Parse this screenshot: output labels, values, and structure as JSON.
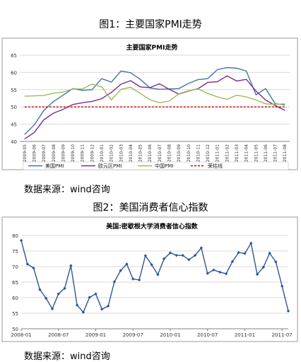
{
  "figure1": {
    "caption": "图1：主要国家PMI走势",
    "source": "数据来源：wind咨询",
    "chart_data": {
      "type": "line",
      "title": "主要国家PMI走势",
      "ylim": [
        40,
        65
      ],
      "yticks": [
        40,
        45,
        50,
        55,
        60,
        65
      ],
      "categories": [
        "2009-05",
        "2009-06",
        "2009-07",
        "2009-08",
        "2009-09",
        "2009-10",
        "2009-11",
        "2009-12",
        "2010-01",
        "2010-02",
        "2010-03",
        "2010-04",
        "2010-05",
        "2010-06",
        "2010-07",
        "2010-08",
        "2010-09",
        "2010-10",
        "2010-11",
        "2010-12",
        "2011-01",
        "2011-02",
        "2011-03",
        "2011-04",
        "2011-05",
        "2011-06",
        "2011-07",
        "2011-08"
      ],
      "grid": true,
      "legend_position": "bottom",
      "series": [
        {
          "name": "美国PMI",
          "color": "#4472a8",
          "values": [
            42.0,
            44.8,
            49.0,
            51.6,
            53.4,
            55.3,
            54.8,
            55.0,
            58.2,
            57.2,
            60.4,
            59.9,
            58.0,
            55.5,
            55.1,
            55.2,
            55.3,
            56.8,
            57.9,
            58.2,
            60.8,
            61.4,
            61.2,
            60.4,
            53.5,
            55.3,
            50.9,
            50.6
          ]
        },
        {
          "name": "欧元区PMI",
          "color": "#7a2d8c",
          "values": [
            40.7,
            42.6,
            46.3,
            48.2,
            49.3,
            50.7,
            51.2,
            51.6,
            52.4,
            54.2,
            56.6,
            57.6,
            55.8,
            55.6,
            56.7,
            55.1,
            53.7,
            54.6,
            55.3,
            57.1,
            57.3,
            59.0,
            57.5,
            58.0,
            54.6,
            52.0,
            50.4,
            49.0
          ]
        },
        {
          "name": "中国PMI",
          "color": "#9bbb59",
          "values": [
            53.1,
            53.2,
            53.3,
            54.0,
            54.3,
            55.2,
            55.2,
            56.6,
            55.8,
            52.0,
            55.1,
            55.7,
            53.9,
            52.1,
            51.2,
            51.7,
            53.8,
            54.7,
            55.2,
            53.9,
            52.9,
            52.2,
            53.4,
            52.9,
            52.0,
            50.9,
            50.7,
            50.9
          ]
        },
        {
          "name": "荣枯线",
          "color": "#c00000",
          "dashed": true,
          "values": [
            50,
            50,
            50,
            50,
            50,
            50,
            50,
            50,
            50,
            50,
            50,
            50,
            50,
            50,
            50,
            50,
            50,
            50,
            50,
            50,
            50,
            50,
            50,
            50,
            50,
            50,
            50,
            50
          ]
        }
      ]
    }
  },
  "figure2": {
    "caption": "图2：美国消费者信心指数",
    "source": "数据来源：wind咨询",
    "chart_data": {
      "type": "line",
      "title": "美国:密歇根大学消费者信心指数",
      "ylim": [
        50,
        80
      ],
      "yticks": [
        50,
        55,
        60,
        65,
        70,
        75,
        80
      ],
      "xticks": [
        "2008-01",
        "2008-07",
        "2009-01",
        "2009-07",
        "2010-01",
        "2010-07",
        "2011-01",
        "2011-07"
      ],
      "grid": true,
      "series": [
        {
          "name": "",
          "color": "#2f5597",
          "marker": "diamond",
          "x": [
            "2008-01",
            "2008-02",
            "2008-03",
            "2008-04",
            "2008-05",
            "2008-06",
            "2008-07",
            "2008-08",
            "2008-09",
            "2008-10",
            "2008-11",
            "2008-12",
            "2009-01",
            "2009-02",
            "2009-03",
            "2009-04",
            "2009-05",
            "2009-06",
            "2009-07",
            "2009-08",
            "2009-09",
            "2009-10",
            "2009-11",
            "2009-12",
            "2010-01",
            "2010-02",
            "2010-03",
            "2010-04",
            "2010-05",
            "2010-06",
            "2010-07",
            "2010-08",
            "2010-09",
            "2010-10",
            "2010-11",
            "2010-12",
            "2011-01",
            "2011-02",
            "2011-03",
            "2011-04",
            "2011-05",
            "2011-06",
            "2011-07",
            "2011-08"
          ],
          "values": [
            78.4,
            70.8,
            69.5,
            62.6,
            59.8,
            56.4,
            61.2,
            63.0,
            70.3,
            57.6,
            55.3,
            60.1,
            61.2,
            56.3,
            57.3,
            65.1,
            68.7,
            70.8,
            66.0,
            65.7,
            73.5,
            70.6,
            67.4,
            72.5,
            74.4,
            73.6,
            73.6,
            72.2,
            73.6,
            76.0,
            67.8,
            68.9,
            68.2,
            67.7,
            71.6,
            74.5,
            74.2,
            77.5,
            67.5,
            69.8,
            74.3,
            71.5,
            63.7,
            55.7
          ]
        }
      ]
    }
  }
}
